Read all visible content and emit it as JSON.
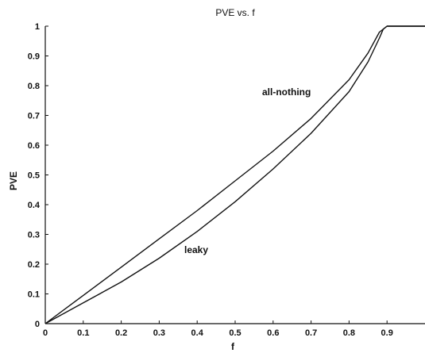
{
  "chart_data": {
    "type": "line",
    "title": "PVE vs. f",
    "xlabel": "f",
    "ylabel": "PVE",
    "xlim": [
      0,
      1
    ],
    "ylim": [
      0,
      1
    ],
    "grid": false,
    "x_ticks": [
      "0",
      "0.1",
      "0.2",
      "0.3",
      "0.4",
      "0.5",
      "0.6",
      "0.7",
      "0.8",
      "0.9"
    ],
    "y_ticks": [
      "0",
      "0.1",
      "0.2",
      "0.3",
      "0.4",
      "0.5",
      "0.6",
      "0.7",
      "0.8",
      "0.9",
      "1"
    ],
    "series": [
      {
        "name": "all-nothing",
        "x": [
          0,
          0.1,
          0.2,
          0.3,
          0.4,
          0.5,
          0.6,
          0.7,
          0.8,
          0.85,
          0.88,
          0.9,
          1.0
        ],
        "y": [
          0,
          0.095,
          0.19,
          0.285,
          0.38,
          0.48,
          0.58,
          0.69,
          0.82,
          0.91,
          0.98,
          1.0,
          1.0
        ]
      },
      {
        "name": "leaky",
        "x": [
          0,
          0.1,
          0.2,
          0.3,
          0.4,
          0.5,
          0.6,
          0.7,
          0.8,
          0.85,
          0.88,
          0.89,
          0.9,
          1.0
        ],
        "y": [
          0,
          0.07,
          0.14,
          0.22,
          0.31,
          0.41,
          0.52,
          0.64,
          0.78,
          0.88,
          0.96,
          0.99,
          1.0,
          1.0
        ]
      }
    ],
    "annotations": [
      "all-nothing",
      "leaky"
    ]
  }
}
